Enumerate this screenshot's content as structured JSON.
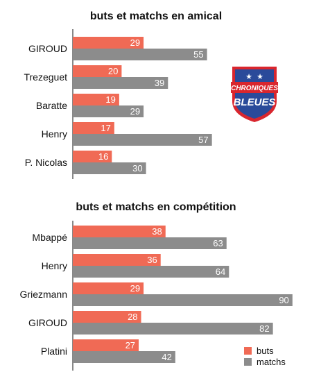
{
  "chart_data": [
    {
      "type": "bar",
      "orientation": "horizontal",
      "title": "buts et matchs en amical",
      "categories": [
        "GIROUD",
        "Trezeguet",
        "Baratte",
        "Henry",
        "P. Nicolas"
      ],
      "series": [
        {
          "name": "buts",
          "values": [
            29,
            20,
            19,
            17,
            16
          ],
          "color": "#f06a55"
        },
        {
          "name": "matchs",
          "values": [
            55,
            39,
            29,
            57,
            30
          ],
          "color": "#8c8c8c"
        }
      ],
      "xlim": [
        0,
        90
      ],
      "grid": false
    },
    {
      "type": "bar",
      "orientation": "horizontal",
      "title": "buts et matchs en compétition",
      "categories": [
        "Mbappé",
        "Henry",
        "Griezmann",
        "GIROUD",
        "Platini"
      ],
      "series": [
        {
          "name": "buts",
          "values": [
            38,
            36,
            29,
            28,
            27
          ],
          "color": "#f06a55"
        },
        {
          "name": "matchs",
          "values": [
            63,
            64,
            90,
            82,
            42
          ],
          "color": "#8c8c8c"
        }
      ],
      "xlim": [
        0,
        90
      ],
      "grid": false
    }
  ],
  "legend": {
    "placement": "bottom-right",
    "items": [
      {
        "label": "buts",
        "color": "#f06a55"
      },
      {
        "label": "matchs",
        "color": "#8c8c8c"
      }
    ]
  },
  "logo": {
    "name": "chroniques-bleues-logo",
    "line1": "CHRONIQUES",
    "line2": "BLEUES",
    "colors": {
      "shield": "#2a4a9a",
      "border": "#d9262e",
      "stars": "#ffffff"
    }
  }
}
